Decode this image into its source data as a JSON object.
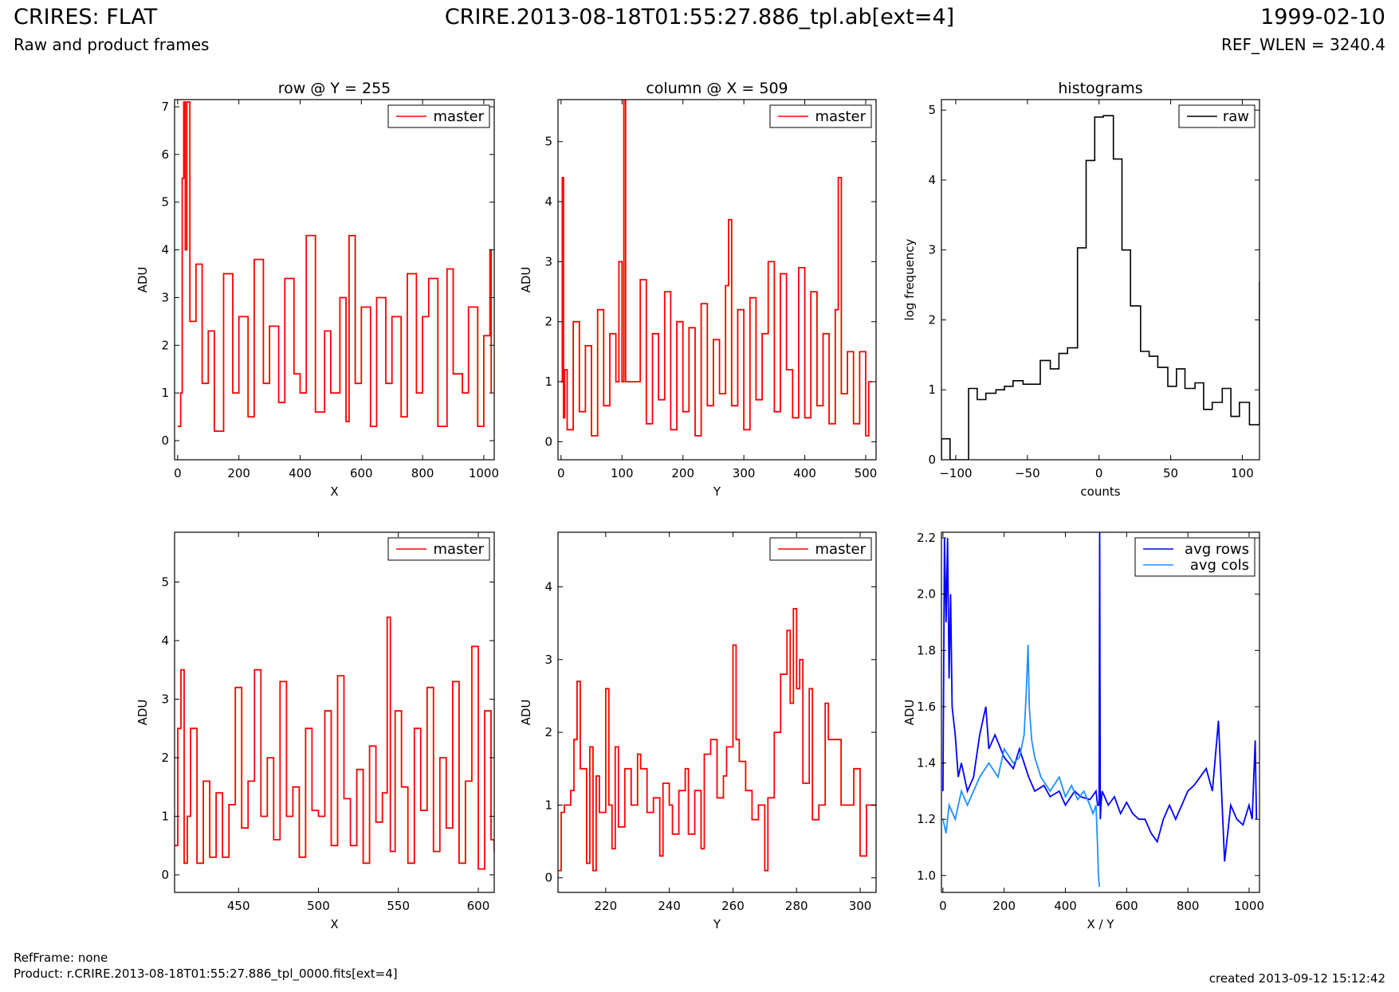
{
  "header": {
    "title": "CRIRES: FLAT",
    "subtitle": "Raw and product frames",
    "file": "CRIRE.2013-08-18T01:55:27.886_tpl.ab[ext=4]",
    "date": "1999-02-10",
    "ref_wlen": "REF_WLEN = 3240.4"
  },
  "footer": {
    "refframe": "RefFrame: none",
    "product": "Product: r.CRIRE.2013-08-18T01:55:27.886_tpl_0000.fits[ext=4]",
    "created": "created 2013-09-12 15:12:42"
  },
  "colors": {
    "master": "#ff0000",
    "raw": "#000000",
    "avg_rows": "#0000ff",
    "avg_cols": "#1e90ff"
  },
  "chart_data": [
    {
      "type": "line",
      "title": "row @ Y = 255",
      "xlabel": "X",
      "ylabel": "ADU",
      "xlim": [
        -10,
        1034
      ],
      "ylim": [
        -0.4,
        7.15
      ],
      "xticks": [
        0,
        200,
        400,
        600,
        800,
        1000
      ],
      "yticks": [
        0,
        1,
        2,
        3,
        4,
        5,
        6,
        7
      ],
      "legend": "top-right",
      "series": [
        {
          "name": "master",
          "style": "step",
          "x": [
            0,
            10,
            15,
            20,
            25,
            30,
            40,
            60,
            80,
            100,
            120,
            150,
            180,
            200,
            230,
            250,
            280,
            300,
            330,
            350,
            380,
            400,
            420,
            450,
            480,
            500,
            530,
            550,
            560,
            580,
            600,
            630,
            650,
            680,
            700,
            730,
            750,
            780,
            800,
            820,
            850,
            880,
            900,
            930,
            950,
            980,
            1000,
            1020,
            1024
          ],
          "y": [
            0.3,
            1.0,
            5.5,
            7.1,
            4.0,
            7.1,
            2.5,
            3.7,
            1.2,
            2.3,
            0.2,
            3.5,
            1.0,
            2.6,
            0.5,
            3.8,
            1.2,
            2.4,
            0.8,
            3.4,
            1.4,
            1.0,
            4.3,
            0.6,
            2.3,
            1.0,
            3.0,
            0.4,
            4.3,
            1.2,
            2.8,
            0.3,
            3.0,
            1.2,
            2.6,
            0.5,
            3.5,
            1.0,
            2.6,
            3.4,
            0.3,
            3.6,
            1.4,
            1.0,
            2.8,
            0.3,
            2.2,
            4.0,
            1.0
          ]
        }
      ]
    },
    {
      "type": "line",
      "title": "column @ X = 509",
      "xlabel": "Y",
      "ylabel": "ADU",
      "xlim": [
        -5,
        517
      ],
      "ylim": [
        -0.3,
        5.7
      ],
      "xticks": [
        0,
        100,
        200,
        300,
        400,
        500
      ],
      "yticks": [
        0,
        1,
        2,
        3,
        4,
        5
      ],
      "legend": "top-right",
      "series": [
        {
          "name": "master",
          "style": "step",
          "x": [
            0,
            2,
            4,
            6,
            10,
            20,
            30,
            40,
            50,
            60,
            70,
            80,
            90,
            95,
            100,
            103,
            106,
            110,
            120,
            130,
            140,
            150,
            160,
            170,
            180,
            190,
            200,
            210,
            220,
            230,
            240,
            250,
            260,
            270,
            275,
            280,
            290,
            300,
            310,
            320,
            330,
            340,
            350,
            360,
            370,
            380,
            390,
            400,
            410,
            420,
            430,
            440,
            450,
            455,
            460,
            470,
            480,
            490,
            500,
            505,
            510
          ],
          "y": [
            1.0,
            4.4,
            0.4,
            1.2,
            0.2,
            2.0,
            0.5,
            1.6,
            0.1,
            2.2,
            0.6,
            1.8,
            1.0,
            3.0,
            1.0,
            5.7,
            1.0,
            1.0,
            1.0,
            2.7,
            0.3,
            1.8,
            0.7,
            2.5,
            0.2,
            2.0,
            0.5,
            1.9,
            0.1,
            2.3,
            0.6,
            1.7,
            0.8,
            2.6,
            3.7,
            0.6,
            2.2,
            0.2,
            2.4,
            0.7,
            1.8,
            3.0,
            0.5,
            2.8,
            1.2,
            0.4,
            2.9,
            0.4,
            2.5,
            0.6,
            1.8,
            0.3,
            2.2,
            4.4,
            0.8,
            1.5,
            0.3,
            1.5,
            0.1,
            1.0,
            1.0
          ]
        }
      ]
    },
    {
      "type": "line",
      "title": "histograms",
      "xlabel": "counts",
      "ylabel": "log frequency",
      "xlim": [
        -110,
        112
      ],
      "ylim": [
        0,
        5.15
      ],
      "xticks": [
        -100,
        -50,
        0,
        50,
        100
      ],
      "yticks": [
        0,
        1,
        2,
        3,
        4,
        5
      ],
      "legend": "top-right",
      "series": [
        {
          "name": "raw",
          "style": "hist",
          "bins": [
            -110,
            -104,
            -98,
            -91,
            -85,
            -79,
            -72,
            -66,
            -60,
            -53,
            -47,
            -41,
            -34,
            -28,
            -22,
            -15,
            -9,
            -3,
            3,
            10,
            16,
            22,
            29,
            35,
            41,
            48,
            54,
            60,
            67,
            73,
            79,
            86,
            92,
            98,
            105,
            112
          ],
          "values": [
            0.3,
            0.0,
            0.0,
            1.02,
            0.86,
            0.95,
            1.0,
            1.05,
            1.13,
            1.08,
            1.08,
            1.42,
            1.3,
            1.52,
            1.6,
            3.03,
            4.28,
            4.9,
            4.92,
            4.3,
            3.0,
            2.2,
            1.55,
            1.48,
            1.32,
            1.05,
            1.3,
            1.02,
            1.1,
            0.72,
            0.82,
            1.02,
            0.62,
            0.82,
            0.5,
            2.55
          ]
        }
      ]
    },
    {
      "type": "line",
      "xlabel": "X",
      "ylabel": "ADU",
      "xlim": [
        410,
        610
      ],
      "ylim": [
        -0.3,
        5.85
      ],
      "xticks": [
        450,
        500,
        550,
        600
      ],
      "yticks": [
        0,
        1,
        2,
        3,
        4,
        5
      ],
      "legend": "top-right",
      "series": [
        {
          "name": "master",
          "style": "step",
          "x": [
            410,
            412,
            414,
            416,
            418,
            420,
            424,
            428,
            432,
            436,
            440,
            444,
            448,
            452,
            456,
            460,
            464,
            468,
            472,
            476,
            480,
            484,
            488,
            492,
            496,
            500,
            504,
            508,
            512,
            516,
            520,
            524,
            528,
            532,
            536,
            540,
            543,
            545,
            548,
            552,
            556,
            560,
            564,
            568,
            572,
            576,
            580,
            584,
            588,
            592,
            596,
            600,
            604,
            608,
            610
          ],
          "y": [
            0.5,
            2.5,
            3.5,
            0.2,
            1.0,
            2.5,
            0.2,
            1.6,
            0.3,
            1.4,
            0.3,
            1.2,
            3.2,
            0.8,
            1.6,
            3.5,
            1.0,
            2.0,
            0.6,
            3.3,
            1.0,
            1.5,
            0.3,
            2.5,
            1.1,
            1.0,
            2.8,
            0.5,
            3.4,
            1.3,
            0.5,
            1.8,
            0.2,
            2.2,
            0.9,
            1.4,
            4.4,
            0.4,
            2.8,
            1.5,
            0.2,
            2.5,
            1.1,
            3.2,
            0.4,
            2.0,
            0.8,
            3.3,
            0.2,
            1.6,
            3.9,
            0.1,
            2.8,
            0.6,
            0.4
          ]
        }
      ]
    },
    {
      "type": "line",
      "xlabel": "Y",
      "ylabel": "ADU",
      "xlim": [
        205,
        305
      ],
      "ylim": [
        -0.2,
        4.75
      ],
      "xticks": [
        220,
        240,
        260,
        280,
        300
      ],
      "yticks": [
        0,
        1,
        2,
        3,
        4
      ],
      "legend": "top-right",
      "series": [
        {
          "name": "master",
          "style": "step",
          "x": [
            205,
            206,
            207,
            209,
            210,
            211,
            212,
            214,
            215,
            216,
            217,
            218,
            220,
            221,
            222,
            223,
            224,
            226,
            228,
            230,
            231,
            233,
            235,
            237,
            238,
            240,
            241,
            243,
            245,
            246,
            248,
            250,
            251,
            253,
            255,
            257,
            258,
            260,
            261,
            262,
            264,
            266,
            268,
            270,
            271,
            273,
            275,
            277,
            278,
            279,
            280,
            281,
            282,
            284,
            285,
            287,
            289,
            290,
            292,
            294,
            296,
            298,
            300,
            302,
            304,
            305
          ],
          "y": [
            0.1,
            0.9,
            1.0,
            1.2,
            1.9,
            2.7,
            1.5,
            0.2,
            1.8,
            0.1,
            1.4,
            0.9,
            2.6,
            1.0,
            0.4,
            1.8,
            0.7,
            1.5,
            1.0,
            1.7,
            1.5,
            0.9,
            1.1,
            0.3,
            1.3,
            1.0,
            0.6,
            1.2,
            1.5,
            0.6,
            1.2,
            0.4,
            1.7,
            1.9,
            1.1,
            1.4,
            1.8,
            3.2,
            1.9,
            1.6,
            1.2,
            0.8,
            1.0,
            0.1,
            1.1,
            2.0,
            2.8,
            3.4,
            2.4,
            3.7,
            2.6,
            3.0,
            1.3,
            2.6,
            0.8,
            1.0,
            2.4,
            1.9,
            1.9,
            1.0,
            1.0,
            1.5,
            0.3,
            1.0,
            1.0,
            1.0
          ]
        }
      ]
    },
    {
      "type": "line",
      "xlabel": "X / Y",
      "ylabel": "ADU",
      "xlim": [
        -5,
        1034
      ],
      "ylim": [
        0.94,
        2.22
      ],
      "xticks": [
        0,
        200,
        400,
        600,
        800,
        1000
      ],
      "yticks": [
        1.0,
        1.2,
        1.4,
        1.6,
        1.8,
        2.0,
        2.2
      ],
      "legend": "top-right",
      "series": [
        {
          "name": "avg rows",
          "x": [
            0,
            5,
            10,
            15,
            20,
            25,
            30,
            40,
            50,
            60,
            80,
            100,
            120,
            140,
            150,
            170,
            200,
            230,
            250,
            280,
            300,
            330,
            350,
            380,
            400,
            430,
            450,
            480,
            500,
            505,
            510,
            512,
            514,
            516,
            520,
            540,
            560,
            580,
            600,
            620,
            640,
            660,
            680,
            700,
            720,
            740,
            760,
            780,
            800,
            820,
            840,
            860,
            880,
            900,
            910,
            920,
            930,
            940,
            960,
            980,
            1000,
            1010,
            1020,
            1024
          ],
          "y": [
            1.3,
            2.2,
            1.9,
            2.2,
            1.7,
            2.0,
            1.6,
            1.5,
            1.35,
            1.4,
            1.3,
            1.35,
            1.5,
            1.6,
            1.45,
            1.5,
            1.42,
            1.38,
            1.45,
            1.35,
            1.3,
            1.32,
            1.28,
            1.3,
            1.25,
            1.3,
            1.28,
            1.27,
            1.3,
            1.25,
            1.25,
            2.22,
            1.2,
            1.25,
            1.3,
            1.25,
            1.28,
            1.22,
            1.26,
            1.22,
            1.2,
            1.2,
            1.15,
            1.12,
            1.2,
            1.25,
            1.2,
            1.25,
            1.3,
            1.32,
            1.35,
            1.38,
            1.3,
            1.55,
            1.3,
            1.05,
            1.15,
            1.25,
            1.2,
            1.18,
            1.25,
            1.2,
            1.48,
            1.2
          ]
        },
        {
          "name": "avg cols",
          "x": [
            0,
            10,
            20,
            40,
            60,
            80,
            100,
            120,
            150,
            180,
            200,
            230,
            250,
            265,
            272,
            278,
            282,
            290,
            300,
            320,
            350,
            380,
            400,
            420,
            440,
            460,
            480,
            490,
            500,
            505,
            508,
            511
          ],
          "y": [
            1.2,
            1.15,
            1.25,
            1.2,
            1.3,
            1.25,
            1.3,
            1.35,
            1.4,
            1.35,
            1.45,
            1.4,
            1.42,
            1.5,
            1.65,
            1.82,
            1.6,
            1.48,
            1.42,
            1.35,
            1.3,
            1.35,
            1.28,
            1.32,
            1.27,
            1.3,
            1.25,
            1.22,
            1.25,
            1.1,
            1.0,
            0.96
          ]
        }
      ]
    }
  ]
}
